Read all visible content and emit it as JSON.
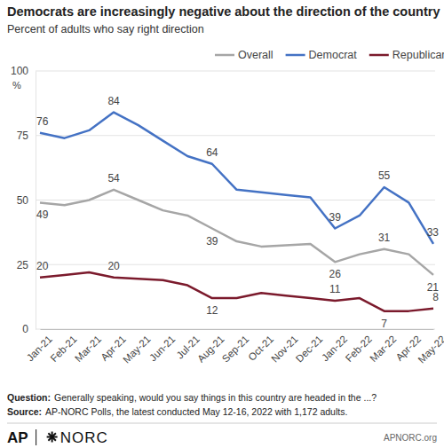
{
  "chart_data": {
    "type": "line",
    "title": "Democrats are increasingly negative about the direction of the country",
    "subtitle": "Percent of adults who say right direction",
    "ylabel": "%",
    "categories": [
      "Jan-21",
      "Feb-21",
      "Mar-21",
      "Apr-21",
      "May-21",
      "Jun-21",
      "Jul-21",
      "Aug-21",
      "Sep-21",
      "Oct-21",
      "Nov-21",
      "Dec-21",
      "Jan-22",
      "Feb-22",
      "Mar-22",
      "Apr-22",
      "May-22"
    ],
    "series": [
      {
        "name": "Overall",
        "color": "#a6a6a6",
        "values": [
          49,
          48,
          50,
          54,
          50,
          46,
          44,
          39,
          34,
          32,
          32.5,
          33,
          26,
          29,
          31,
          29,
          21
        ],
        "value_labels": [
          "49",
          null,
          null,
          "54",
          null,
          null,
          null,
          "39",
          null,
          null,
          null,
          null,
          "26",
          null,
          "31",
          null,
          "21"
        ]
      },
      {
        "name": "Democrat",
        "color": "#4472c4",
        "values": [
          76,
          74,
          77,
          84,
          79,
          73,
          67,
          64,
          54,
          53,
          52,
          51,
          39,
          44,
          55,
          49,
          33
        ],
        "value_labels": [
          "76",
          null,
          null,
          "84",
          null,
          null,
          null,
          "64",
          null,
          null,
          null,
          null,
          "39",
          null,
          "55",
          null,
          "33"
        ]
      },
      {
        "name": "Republican",
        "color": "#7b1a2c",
        "values": [
          20,
          21,
          22,
          20,
          19.5,
          19,
          17,
          12,
          12,
          14,
          13,
          12,
          11,
          12,
          7,
          7,
          8
        ],
        "value_labels": [
          "20",
          null,
          null,
          "20",
          null,
          null,
          null,
          "12",
          null,
          null,
          null,
          null,
          "11",
          null,
          "7",
          null,
          "8"
        ]
      }
    ],
    "ylim": [
      0,
      100
    ],
    "yticks": [
      0,
      25,
      50,
      75,
      100
    ],
    "grid": true,
    "legend": "top",
    "data_labels": true,
    "question": {
      "label": "Question:",
      "text": "Generally speaking, would you say things in this country are headed in the ...?"
    },
    "source": {
      "label": "Source:",
      "text": "AP-NORC Polls, the latest conducted May 12-16, 2022 with 1,172 adults."
    },
    "logos": [
      "AP",
      "NORC"
    ],
    "website": "APNORC.org"
  }
}
